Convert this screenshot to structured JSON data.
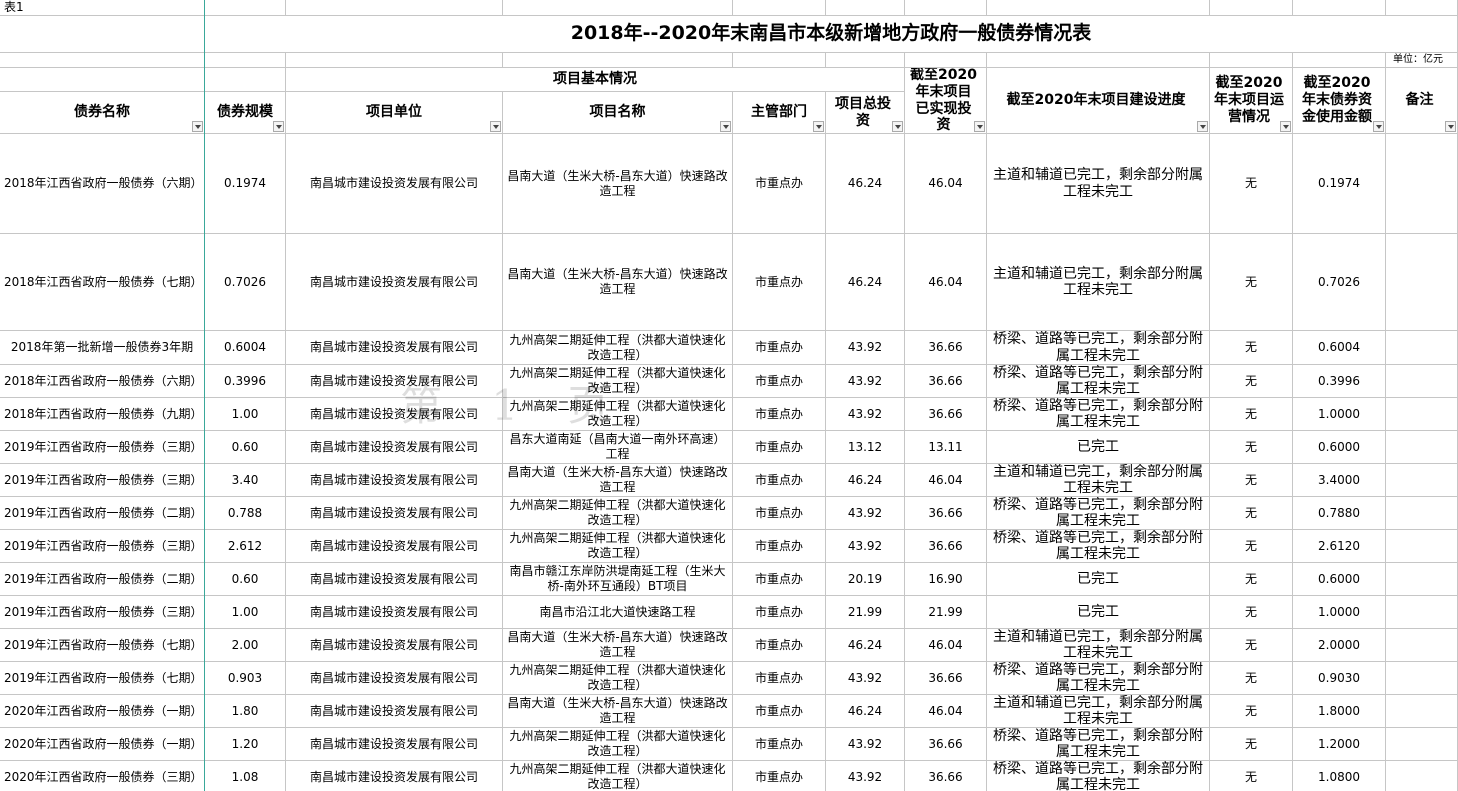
{
  "sheet_label": "表1",
  "title": "2018年--2020年末南昌市本级新增地方政府一般债券情况表",
  "unit": "单位：亿元",
  "group_header": "项目基本情况",
  "headers": [
    "债券名称",
    "债券规模",
    "项目单位",
    "项目名称",
    "主管部门",
    "项目总投资",
    "截至2020年末项目已实现投资",
    "截至2020年末项目建设进度",
    "截至2020年末项目运营情况",
    "截至2020年末债券资金使用金额",
    "备注"
  ],
  "watermark": "第 1 页",
  "rows": [
    [
      "2018年江西省政府一般债券（六期）",
      "0.1974",
      "南昌城市建设投资发展有限公司",
      "昌南大道（生米大桥-昌东大道）快速路改造工程",
      "市重点办",
      "46.24",
      "46.04",
      "主道和辅道已完工，剩余部分附属工程未完工",
      "无",
      "0.1974"
    ],
    [
      "2018年江西省政府一般债券（七期）",
      "0.7026",
      "南昌城市建设投资发展有限公司",
      "昌南大道（生米大桥-昌东大道）快速路改造工程",
      "市重点办",
      "46.24",
      "46.04",
      "主道和辅道已完工，剩余部分附属工程未完工",
      "无",
      "0.7026"
    ],
    [
      "2018年第一批新增一般债券3年期",
      "0.6004",
      "南昌城市建设投资发展有限公司",
      "九州高架二期延伸工程（洪都大道快速化改造工程）",
      "市重点办",
      "43.92",
      "36.66",
      "桥梁、道路等已完工，剩余部分附属工程未完工",
      "无",
      "0.6004"
    ],
    [
      "2018年江西省政府一般债券（六期）",
      "0.3996",
      "南昌城市建设投资发展有限公司",
      "九州高架二期延伸工程（洪都大道快速化改造工程）",
      "市重点办",
      "43.92",
      "36.66",
      "桥梁、道路等已完工，剩余部分附属工程未完工",
      "无",
      "0.3996"
    ],
    [
      "2018年江西省政府一般债券（九期）",
      "1.00",
      "南昌城市建设投资发展有限公司",
      "九州高架二期延伸工程（洪都大道快速化改造工程）",
      "市重点办",
      "43.92",
      "36.66",
      "桥梁、道路等已完工，剩余部分附属工程未完工",
      "无",
      "1.0000"
    ],
    [
      "2019年江西省政府一般债券（三期）",
      "0.60",
      "南昌城市建设投资发展有限公司",
      "昌东大道南延（昌南大道一南外环高速）工程",
      "市重点办",
      "13.12",
      "13.11",
      "已完工",
      "无",
      "0.6000"
    ],
    [
      "2019年江西省政府一般债券（三期）",
      "3.40",
      "南昌城市建设投资发展有限公司",
      "昌南大道（生米大桥-昌东大道）快速路改造工程",
      "市重点办",
      "46.24",
      "46.04",
      "主道和辅道已完工，剩余部分附属工程未完工",
      "无",
      "3.4000"
    ],
    [
      "2019年江西省政府一般债券（二期）",
      "0.788",
      "南昌城市建设投资发展有限公司",
      "九州高架二期延伸工程（洪都大道快速化改造工程）",
      "市重点办",
      "43.92",
      "36.66",
      "桥梁、道路等已完工，剩余部分附属工程未完工",
      "无",
      "0.7880"
    ],
    [
      "2019年江西省政府一般债券（三期）",
      "2.612",
      "南昌城市建设投资发展有限公司",
      "九州高架二期延伸工程（洪都大道快速化改造工程）",
      "市重点办",
      "43.92",
      "36.66",
      "桥梁、道路等已完工，剩余部分附属工程未完工",
      "无",
      "2.6120"
    ],
    [
      "2019年江西省政府一般债券（二期）",
      "0.60",
      "南昌城市建设投资发展有限公司",
      "南昌市赣江东岸防洪堤南延工程（生米大桥-南外环互通段）BT项目",
      "市重点办",
      "20.19",
      "16.90",
      "已完工",
      "无",
      "0.6000"
    ],
    [
      "2019年江西省政府一般债券（三期）",
      "1.00",
      "南昌城市建设投资发展有限公司",
      "南昌市沿江北大道快速路工程",
      "市重点办",
      "21.99",
      "21.99",
      "已完工",
      "无",
      "1.0000"
    ],
    [
      "2019年江西省政府一般债券（七期）",
      "2.00",
      "南昌城市建设投资发展有限公司",
      "昌南大道（生米大桥-昌东大道）快速路改造工程",
      "市重点办",
      "46.24",
      "46.04",
      "主道和辅道已完工，剩余部分附属工程未完工",
      "无",
      "2.0000"
    ],
    [
      "2019年江西省政府一般债券（七期）",
      "0.903",
      "南昌城市建设投资发展有限公司",
      "九州高架二期延伸工程（洪都大道快速化改造工程）",
      "市重点办",
      "43.92",
      "36.66",
      "桥梁、道路等已完工，剩余部分附属工程未完工",
      "无",
      "0.9030"
    ],
    [
      "2020年江西省政府一般债券（一期）",
      "1.80",
      "南昌城市建设投资发展有限公司",
      "昌南大道（生米大桥-昌东大道）快速路改造工程",
      "市重点办",
      "46.24",
      "46.04",
      "主道和辅道已完工，剩余部分附属工程未完工",
      "无",
      "1.8000"
    ],
    [
      "2020年江西省政府一般债券（一期）",
      "1.20",
      "南昌城市建设投资发展有限公司",
      "九州高架二期延伸工程（洪都大道快速化改造工程）",
      "市重点办",
      "43.92",
      "36.66",
      "桥梁、道路等已完工，剩余部分附属工程未完工",
      "无",
      "1.2000"
    ],
    [
      "2020年江西省政府一般债券（三期）",
      "1.08",
      "南昌城市建设投资发展有限公司",
      "九州高架二期延伸工程（洪都大道快速化改造工程）",
      "市重点办",
      "43.92",
      "36.66",
      "桥梁、道路等已完工，剩余部分附属工程未完工",
      "无",
      "1.0800"
    ]
  ]
}
